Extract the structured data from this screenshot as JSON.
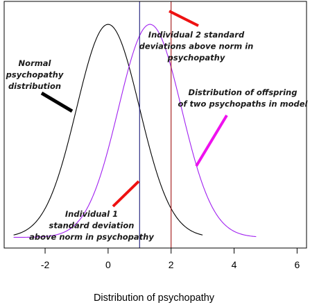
{
  "chart_data": {
    "type": "line",
    "xlabel": "Distribution of psychopathy",
    "ylabel": "",
    "xlim": [
      -3.3,
      6.3
    ],
    "ylim": [
      -0.02,
      0.442
    ],
    "x_ticks": [
      -2,
      0,
      2,
      4,
      6
    ],
    "x_tick_labels": [
      "-2",
      "0",
      "2",
      "4",
      "6"
    ],
    "grid": false,
    "legend": "none",
    "series": [
      {
        "distribution": "normal",
        "mean": 0,
        "sd": 1,
        "x_range": [
          -3,
          3
        ],
        "color": "#000000"
      },
      {
        "distribution": "normal",
        "mean": 1.33,
        "sd": 1,
        "x_range": [
          -3,
          4.7
        ],
        "color": "#a020f0"
      }
    ],
    "vlines": [
      {
        "x": 1,
        "color": "#1a1a7a"
      },
      {
        "x": 2,
        "color": "#a01010"
      }
    ],
    "annotations": [
      {
        "lines": [
          "Normal",
          "psychopathy",
          "distribution"
        ],
        "arrow_color": "#000000"
      },
      {
        "lines": [
          "Individual 2 standard",
          "deviations above norm in",
          "psychopathy"
        ],
        "arrow_color": "#ee1111"
      },
      {
        "lines": [
          "Distribution of offspring",
          "of two psychopaths in model"
        ],
        "arrow_color": "#ee11ee"
      },
      {
        "lines": [
          "Individual 1",
          "standard deviation",
          "above norm in psychopathy"
        ],
        "arrow_color": "#ee1111"
      }
    ]
  }
}
